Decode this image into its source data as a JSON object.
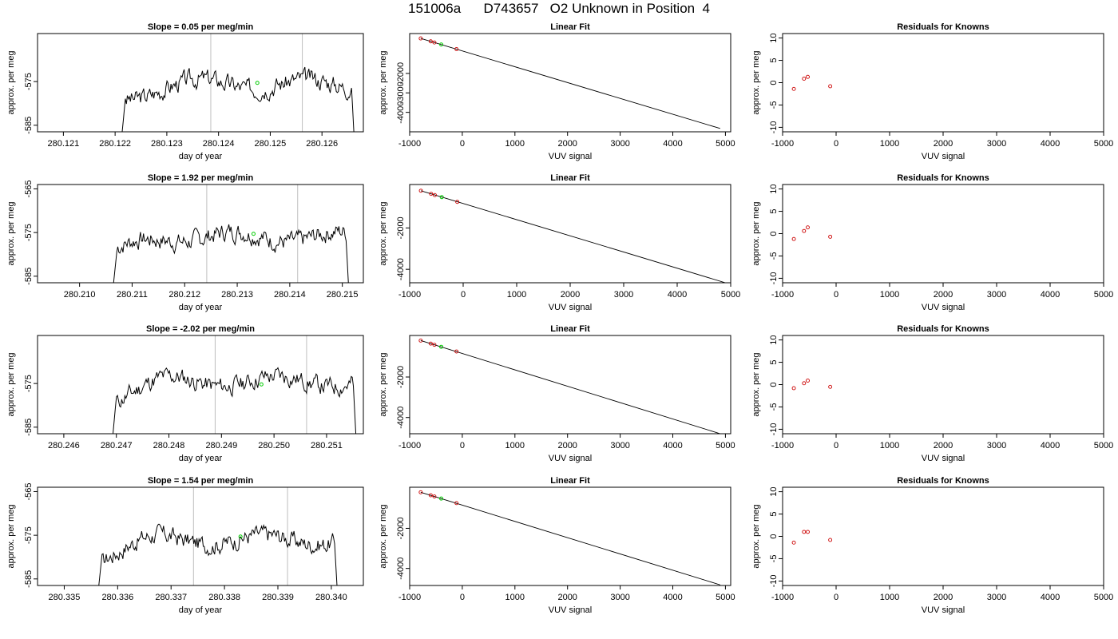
{
  "title": "151006a      D743657   O2 Unknown in Position  4",
  "chart_data": [
    {
      "type": "line",
      "row": 1,
      "panel": "trace",
      "title": "Slope =  0.05  per meg/min",
      "xlabel": "day of year",
      "ylabel": "approx. per meg",
      "xlim": [
        280.1205,
        280.1268
      ],
      "ylim": [
        -586.5,
        -564
      ],
      "xticks": [
        "280.121",
        "280.122",
        "280.123",
        "280.124",
        "280.125",
        "280.126"
      ],
      "yticks": [
        "-575",
        "-585"
      ],
      "vlines": [
        280.12385,
        280.12562
      ],
      "trace_start": 280.12212,
      "trace_end": 280.12663,
      "trace_mid": -575.5,
      "seed": 3,
      "green_point": [
        280.12475,
        -575.3
      ]
    },
    {
      "type": "line",
      "row": 2,
      "panel": "trace",
      "title": "Slope =  1.92  per meg/min",
      "xlabel": "day of year",
      "ylabel": "approx. per meg",
      "xlim": [
        280.2092,
        280.2154
      ],
      "ylim": [
        -586.5,
        -564
      ],
      "xticks": [
        "280.210",
        "280.211",
        "280.212",
        "280.213",
        "280.214",
        "280.215"
      ],
      "yticks": [
        "-565",
        "-575",
        "-585"
      ],
      "vlines": [
        280.21242,
        280.21415
      ],
      "trace_start": 280.21063,
      "trace_end": 280.21513,
      "trace_mid": -576,
      "seed": 7,
      "green_point": [
        280.21331,
        -575.3
      ]
    },
    {
      "type": "line",
      "row": 3,
      "panel": "trace",
      "title": "Slope =  -2.02  per meg/min",
      "xlabel": "day of year",
      "ylabel": "approx. per meg",
      "xlim": [
        280.2455,
        280.2517
      ],
      "ylim": [
        -586.5,
        -564
      ],
      "xticks": [
        "280.246",
        "280.247",
        "280.248",
        "280.249",
        "280.250",
        "280.251"
      ],
      "yticks": [
        "-575",
        "-585"
      ],
      "vlines": [
        280.24888,
        280.25062
      ],
      "trace_start": 280.24692,
      "trace_end": 280.25157,
      "trace_mid": -574.5,
      "seed": 11,
      "green_point": [
        280.24976,
        -575.2
      ]
    },
    {
      "type": "line",
      "row": 4,
      "panel": "trace",
      "title": "Slope =  1.54  per meg/min",
      "xlabel": "day of year",
      "ylabel": "approx. per meg",
      "xlim": [
        280.3345,
        280.3406
      ],
      "ylim": [
        -586.5,
        -564
      ],
      "xticks": [
        "280.335",
        "280.336",
        "280.337",
        "280.338",
        "280.339",
        "280.340"
      ],
      "yticks": [
        "-565",
        "-575",
        "-585"
      ],
      "vlines": [
        280.33742,
        280.33918
      ],
      "trace_start": 280.33563,
      "trace_end": 280.34012,
      "trace_mid": -576,
      "seed": 17,
      "green_point": [
        280.3383,
        -575.3
      ]
    },
    {
      "type": "scatter",
      "row": 1,
      "panel": "fit",
      "title": "Linear Fit",
      "xlabel": "VUV signal",
      "ylabel": "approx. per meg",
      "xlim": [
        -1000,
        5100
      ],
      "ylim": [
        -5000,
        50
      ],
      "xticks": [
        "-1000",
        "0",
        "1000",
        "2000",
        "3000",
        "4000",
        "5000"
      ],
      "yticks": [
        "-2000",
        "-3000",
        "-4000"
      ],
      "line": [
        [
          -790,
          -200
        ],
        [
          4900,
          -4830
        ]
      ],
      "points": [
        [
          -790,
          -200
        ],
        [
          -600,
          -350
        ],
        [
          -530,
          -410
        ],
        [
          -110,
          -750
        ]
      ],
      "green_point": [
        -400,
        -515
      ]
    },
    {
      "type": "scatter",
      "row": 2,
      "panel": "fit",
      "title": "Linear Fit",
      "xlabel": "VUV signal",
      "ylabel": "approx. per meg",
      "xlim": [
        -1000,
        5000
      ],
      "ylim": [
        -4650,
        100
      ],
      "xticks": [
        "-1000",
        "0",
        "1000",
        "2000",
        "3000",
        "4000",
        "5000"
      ],
      "yticks": [
        "-2000",
        "-4000"
      ],
      "line": [
        [
          -790,
          -200
        ],
        [
          4900,
          -4650
        ]
      ],
      "points": [
        [
          -790,
          -200
        ],
        [
          -600,
          -350
        ],
        [
          -530,
          -410
        ],
        [
          -110,
          -740
        ]
      ],
      "green_point": [
        -400,
        -510
      ]
    },
    {
      "type": "scatter",
      "row": 3,
      "panel": "fit",
      "title": "Linear Fit",
      "xlabel": "VUV signal",
      "ylabel": "approx. per meg",
      "xlim": [
        -1000,
        5100
      ],
      "ylim": [
        -4800,
        50
      ],
      "xticks": [
        "-1000",
        "0",
        "1000",
        "2000",
        "3000",
        "4000",
        "5000"
      ],
      "yticks": [
        "-2000",
        "-4000"
      ],
      "line": [
        [
          -790,
          -200
        ],
        [
          4900,
          -4800
        ]
      ],
      "points": [
        [
          -790,
          -200
        ],
        [
          -600,
          -350
        ],
        [
          -530,
          -410
        ],
        [
          -110,
          -740
        ]
      ],
      "green_point": [
        -400,
        -510
      ]
    },
    {
      "type": "scatter",
      "row": 4,
      "panel": "fit",
      "title": "Linear Fit",
      "xlabel": "VUV signal",
      "ylabel": "approx. per meg",
      "xlim": [
        -1000,
        5100
      ],
      "ylim": [
        -4850,
        50
      ],
      "xticks": [
        "-1000",
        "0",
        "1000",
        "2000",
        "3000",
        "4000",
        "5000"
      ],
      "yticks": [
        "-2000",
        "-4000"
      ],
      "line": [
        [
          -790,
          -200
        ],
        [
          4900,
          -4820
        ]
      ],
      "points": [
        [
          -790,
          -200
        ],
        [
          -600,
          -350
        ],
        [
          -530,
          -410
        ],
        [
          -110,
          -740
        ]
      ],
      "green_point": [
        -400,
        -515
      ]
    },
    {
      "type": "scatter",
      "row": 1,
      "panel": "resid",
      "title": "Residuals for Knowns",
      "xlabel": "VUV signal",
      "ylabel": "approx. per meg",
      "xlim": [
        -1000,
        5000
      ],
      "ylim": [
        -11,
        11
      ],
      "xticks": [
        "-1000",
        "0",
        "1000",
        "2000",
        "3000",
        "4000",
        "5000"
      ],
      "yticks": [
        "10",
        "5",
        "0",
        "-5",
        "-10"
      ],
      "points": [
        [
          -790,
          -1.4
        ],
        [
          -600,
          0.9
        ],
        [
          -530,
          1.3
        ],
        [
          -110,
          -0.8
        ]
      ]
    },
    {
      "type": "scatter",
      "row": 2,
      "panel": "resid",
      "title": "Residuals for Knowns",
      "xlabel": "VUV signal",
      "ylabel": "approx. per meg",
      "xlim": [
        -1000,
        5000
      ],
      "ylim": [
        -11,
        11
      ],
      "xticks": [
        "-1000",
        "0",
        "1000",
        "2000",
        "3000",
        "4000",
        "5000"
      ],
      "yticks": [
        "10",
        "5",
        "0",
        "-5",
        "-10"
      ],
      "points": [
        [
          -790,
          -1.2
        ],
        [
          -600,
          0.6
        ],
        [
          -530,
          1.4
        ],
        [
          -110,
          -0.7
        ]
      ]
    },
    {
      "type": "scatter",
      "row": 3,
      "panel": "resid",
      "title": "Residuals for Knowns",
      "xlabel": "VUV signal",
      "ylabel": "approx. per meg",
      "xlim": [
        -1000,
        5000
      ],
      "ylim": [
        -11,
        11
      ],
      "xticks": [
        "-1000",
        "0",
        "1000",
        "2000",
        "3000",
        "4000",
        "5000"
      ],
      "yticks": [
        "10",
        "5",
        "0",
        "-5",
        "-10"
      ],
      "points": [
        [
          -790,
          -0.8
        ],
        [
          -600,
          0.3
        ],
        [
          -530,
          0.9
        ],
        [
          -110,
          -0.5
        ]
      ]
    },
    {
      "type": "scatter",
      "row": 4,
      "panel": "resid",
      "title": "Residuals for Knowns",
      "xlabel": "VUV signal",
      "ylabel": "approx. per meg",
      "xlim": [
        -1000,
        5000
      ],
      "ylim": [
        -11,
        11
      ],
      "xticks": [
        "-1000",
        "0",
        "1000",
        "2000",
        "3000",
        "4000",
        "5000"
      ],
      "yticks": [
        "10",
        "5",
        "0",
        "-5",
        "-10"
      ],
      "points": [
        [
          -790,
          -1.4
        ],
        [
          -600,
          1.0
        ],
        [
          -530,
          1.0
        ],
        [
          -110,
          -0.8
        ]
      ]
    }
  ],
  "colors": {
    "trace": "#000000",
    "vline": "#bebebe",
    "known_point": "#cc0000",
    "unknown_point": "#00cc00"
  }
}
